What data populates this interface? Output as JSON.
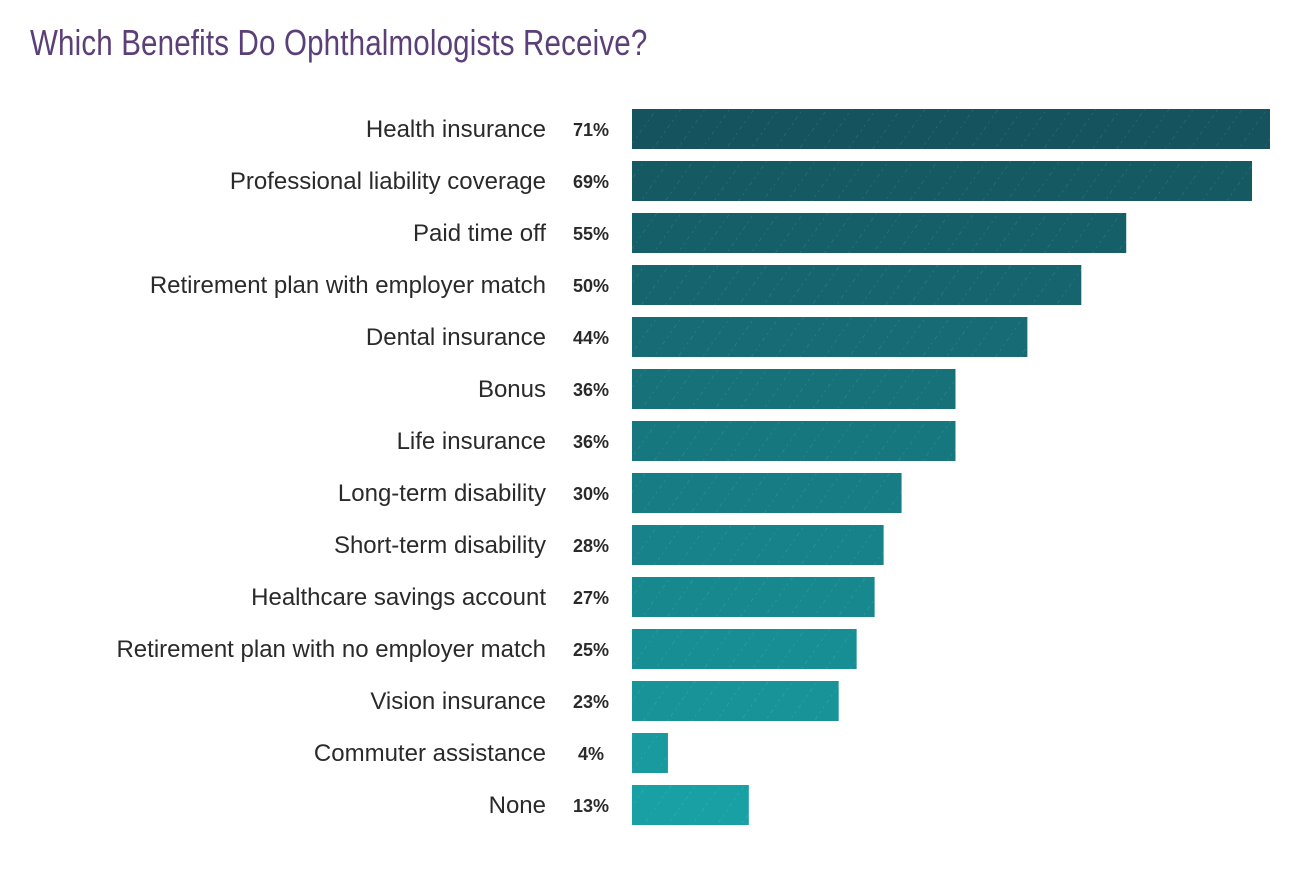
{
  "chart_data": {
    "type": "bar",
    "orientation": "horizontal",
    "title": "Which Benefits Do Ophthalmologists Receive?",
    "xlabel": "",
    "ylabel": "",
    "xlim": [
      0,
      71
    ],
    "grid": false,
    "categories": [
      "Health insurance",
      "Professional liability coverage",
      "Paid time off",
      "Retirement plan with employer match",
      "Dental insurance",
      "Bonus",
      "Life insurance",
      "Long-term disability",
      "Short-term disability",
      "Healthcare savings account",
      "Retirement plan with no employer match",
      "Vision insurance",
      "Commuter assistance",
      "None"
    ],
    "values": [
      71,
      69,
      55,
      50,
      44,
      36,
      36,
      30,
      28,
      27,
      25,
      23,
      4,
      13
    ],
    "data_labels": [
      "71%",
      "69%",
      "55%",
      "50%",
      "44%",
      "36%",
      "36%",
      "30%",
      "28%",
      "27%",
      "25%",
      "23%",
      "4%",
      "13%"
    ],
    "colors": {
      "top": "#15535e",
      "bottom": "#18a0a4",
      "title": "#5b3f78"
    }
  }
}
